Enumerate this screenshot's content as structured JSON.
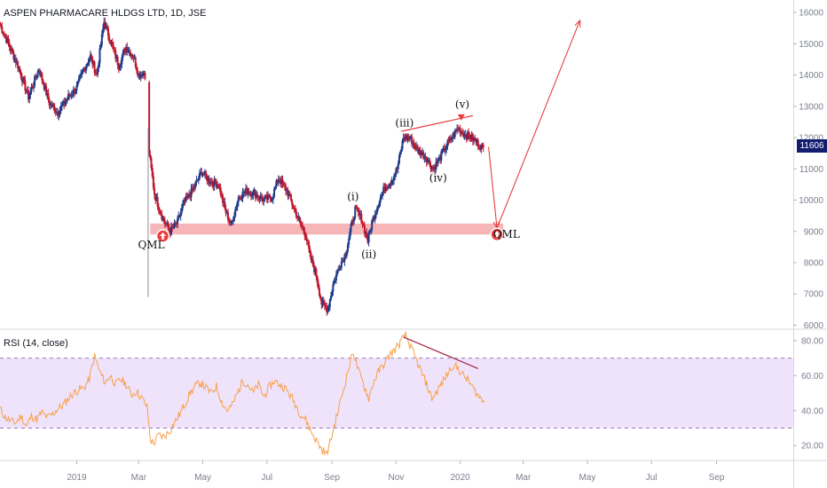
{
  "header": {
    "title": "ASPEN PHARMACARE HLDGS LTD, 1D, JSE",
    "rsi_title": "RSI (14, close)",
    "last_price": "11606"
  },
  "colors": {
    "up_candle": "#1e3a8a",
    "down_candle": "#c0172d",
    "rsi_line": "#f7a04a",
    "rsi_band": "#efe3fb",
    "rsi_band_border": "#9c7ab3",
    "qml_zone": "#f4a9ab",
    "projection": "#e83e3e",
    "divergence": "#a4243f",
    "badge": "#131d70",
    "axis_text": "#7a7f8c",
    "divider": "#d7d9de"
  },
  "chart_data": [
    {
      "type": "candlestick",
      "title": "ASPEN PHARMACARE HLDGS LTD, 1D, JSE",
      "ylim": [
        5900,
        16400
      ],
      "y_ticks": [
        6000,
        7000,
        8000,
        9000,
        10000,
        11000,
        12000,
        13000,
        14000,
        15000,
        16000
      ],
      "y_tick_labels": [
        "6000",
        "7000",
        "8000",
        "9000",
        "10000",
        "11000",
        "12000",
        "13000",
        "14000",
        "15000",
        "16000"
      ],
      "last_price": 11606,
      "close_path": [
        [
          "2018-10-20",
          15600
        ],
        [
          "2018-10-28",
          15000
        ],
        [
          "2018-11-06",
          14300
        ],
        [
          "2018-11-16",
          13300
        ],
        [
          "2018-11-26",
          14200
        ],
        [
          "2018-12-06",
          13100
        ],
        [
          "2018-12-14",
          12800
        ],
        [
          "2018-12-24",
          13300
        ],
        [
          "2019-01-01",
          13600
        ],
        [
          "2019-01-08",
          14200
        ],
        [
          "2019-01-14",
          14600
        ],
        [
          "2019-01-20",
          14000
        ],
        [
          "2019-01-27",
          15700
        ],
        [
          "2019-02-03",
          15000
        ],
        [
          "2019-02-10",
          14300
        ],
        [
          "2019-02-17",
          14900
        ],
        [
          "2019-02-24",
          14600
        ],
        [
          "2019-03-01",
          14000
        ],
        [
          "2019-03-06",
          14100
        ],
        [
          "2019-03-10",
          13700
        ],
        [
          "2019-03-11",
          11500
        ],
        [
          "2019-03-16",
          10200
        ],
        [
          "2019-03-24",
          9400
        ],
        [
          "2019-03-31",
          9000
        ],
        [
          "2019-04-07",
          9300
        ],
        [
          "2019-04-13",
          9900
        ],
        [
          "2019-04-21",
          10300
        ],
        [
          "2019-04-30",
          10900
        ],
        [
          "2019-05-08",
          10600
        ],
        [
          "2019-05-16",
          10500
        ],
        [
          "2019-05-22",
          9700
        ],
        [
          "2019-05-28",
          9200
        ],
        [
          "2019-06-04",
          10100
        ],
        [
          "2019-06-12",
          10300
        ],
        [
          "2019-06-20",
          10200
        ],
        [
          "2019-06-28",
          10000
        ],
        [
          "2019-07-06",
          10100
        ],
        [
          "2019-07-12",
          10700
        ],
        [
          "2019-07-20",
          10300
        ],
        [
          "2019-07-26",
          9800
        ],
        [
          "2019-08-01",
          9300
        ],
        [
          "2019-08-07",
          8900
        ],
        [
          "2019-08-11",
          8200
        ],
        [
          "2019-08-17",
          7600
        ],
        [
          "2019-08-22",
          6700
        ],
        [
          "2019-08-28",
          6500
        ],
        [
          "2019-09-02",
          7300
        ],
        [
          "2019-09-08",
          7900
        ],
        [
          "2019-09-14",
          8300
        ],
        [
          "2019-09-19",
          9100
        ],
        [
          "2019-09-23",
          9700
        ],
        [
          "2019-09-29",
          9400
        ],
        [
          "2019-10-05",
          8700
        ],
        [
          "2019-10-09",
          9300
        ],
        [
          "2019-10-15",
          9900
        ],
        [
          "2019-10-21",
          10400
        ],
        [
          "2019-10-27",
          10600
        ],
        [
          "2019-11-02",
          11000
        ],
        [
          "2019-11-08",
          12000
        ],
        [
          "2019-11-14",
          12000
        ],
        [
          "2019-11-21",
          11600
        ],
        [
          "2019-11-29",
          11400
        ],
        [
          "2019-12-06",
          11000
        ],
        [
          "2019-12-12",
          11300
        ],
        [
          "2019-12-18",
          11700
        ],
        [
          "2019-12-24",
          12000
        ],
        [
          "2019-12-30",
          12300
        ],
        [
          "2020-01-05",
          12100
        ],
        [
          "2020-01-12",
          12000
        ],
        [
          "2020-01-18",
          11800
        ],
        [
          "2020-01-24",
          11606
        ]
      ],
      "qml_zone": [
        8900,
        9250
      ],
      "wave_labels": [
        {
          "text": "(iii)",
          "date": "2019-11-09",
          "price": 12350
        },
        {
          "text": "(v)",
          "date": "2020-01-03",
          "price": 12950
        },
        {
          "text": "(iv)",
          "date": "2019-12-11",
          "price": 10600
        },
        {
          "text": "(ii)",
          "date": "2019-10-06",
          "price": 8150
        },
        {
          "text": "(i)",
          "date": "2019-09-21",
          "price": 10000
        },
        {
          "text": "QML",
          "date": "2019-03-13",
          "price": 8450
        },
        {
          "text": "QML",
          "date": "2020-02-14",
          "price": 8800
        }
      ],
      "qml_markers": [
        [
          "2019-03-24",
          8850
        ],
        [
          "2020-02-05",
          8900
        ]
      ],
      "projection": [
        [
          "2020-01-28",
          11700
        ],
        [
          "2020-02-05",
          9100
        ],
        [
          "2020-04-24",
          15750
        ]
      ],
      "wave_v_marker": [
        "2020-01-02",
        12600
      ],
      "divergence_top": [
        [
          "2019-11-06",
          12200
        ],
        [
          "2020-01-13",
          12700
        ]
      ]
    },
    {
      "type": "line",
      "title": "RSI (14, close)",
      "ylim": [
        12,
        86
      ],
      "y_ticks": [
        20,
        40,
        60,
        80
      ],
      "y_tick_labels": [
        "20.00",
        "40.00",
        "60.00",
        "80.00"
      ],
      "bands": [
        30,
        70
      ],
      "divergence": [
        [
          "2019-11-08",
          82
        ],
        [
          "2020-01-18",
          64
        ]
      ],
      "series": [
        {
          "values": [
            [
              "2018-10-20",
              41
            ],
            [
              "2018-10-25",
              36
            ],
            [
              "2018-10-30",
              34
            ],
            [
              "2018-11-04",
              33
            ],
            [
              "2018-11-09",
              37
            ],
            [
              "2018-11-14",
              31
            ],
            [
              "2018-11-19",
              37
            ],
            [
              "2018-11-24",
              35
            ],
            [
              "2018-11-29",
              39
            ],
            [
              "2018-12-04",
              36
            ],
            [
              "2018-12-09",
              38
            ],
            [
              "2018-12-14",
              41
            ],
            [
              "2018-12-19",
              43
            ],
            [
              "2018-12-24",
              47
            ],
            [
              "2018-12-29",
              50
            ],
            [
              "2019-01-03",
              52
            ],
            [
              "2019-01-08",
              53
            ],
            [
              "2019-01-13",
              58
            ],
            [
              "2019-01-18",
              71
            ],
            [
              "2019-01-23",
              62
            ],
            [
              "2019-01-28",
              56
            ],
            [
              "2019-02-02",
              60
            ],
            [
              "2019-02-07",
              55
            ],
            [
              "2019-02-12",
              58
            ],
            [
              "2019-02-17",
              55
            ],
            [
              "2019-02-22",
              49
            ],
            [
              "2019-02-27",
              51
            ],
            [
              "2019-03-04",
              47
            ],
            [
              "2019-03-09",
              42
            ],
            [
              "2019-03-12",
              24
            ],
            [
              "2019-03-15",
              21
            ],
            [
              "2019-03-20",
              26
            ],
            [
              "2019-03-25",
              25
            ],
            [
              "2019-03-30",
              28
            ],
            [
              "2019-04-04",
              33
            ],
            [
              "2019-04-09",
              38
            ],
            [
              "2019-04-14",
              44
            ],
            [
              "2019-04-19",
              50
            ],
            [
              "2019-04-24",
              54
            ],
            [
              "2019-04-29",
              56
            ],
            [
              "2019-05-04",
              53
            ],
            [
              "2019-05-09",
              50
            ],
            [
              "2019-05-14",
              54
            ],
            [
              "2019-05-19",
              45
            ],
            [
              "2019-05-24",
              40
            ],
            [
              "2019-05-29",
              43
            ],
            [
              "2019-06-03",
              50
            ],
            [
              "2019-06-08",
              57
            ],
            [
              "2019-06-13",
              55
            ],
            [
              "2019-06-18",
              50
            ],
            [
              "2019-06-23",
              55
            ],
            [
              "2019-06-28",
              48
            ],
            [
              "2019-07-03",
              53
            ],
            [
              "2019-07-08",
              57
            ],
            [
              "2019-07-13",
              55
            ],
            [
              "2019-07-18",
              53
            ],
            [
              "2019-07-23",
              49
            ],
            [
              "2019-07-28",
              44
            ],
            [
              "2019-08-02",
              38
            ],
            [
              "2019-08-07",
              35
            ],
            [
              "2019-08-12",
              28
            ],
            [
              "2019-08-17",
              23
            ],
            [
              "2019-08-22",
              18
            ],
            [
              "2019-08-27",
              15
            ],
            [
              "2019-09-01",
              26
            ],
            [
              "2019-09-06",
              38
            ],
            [
              "2019-09-11",
              50
            ],
            [
              "2019-09-16",
              62
            ],
            [
              "2019-09-21",
              74
            ],
            [
              "2019-09-26",
              63
            ],
            [
              "2019-10-01",
              55
            ],
            [
              "2019-10-06",
              47
            ],
            [
              "2019-10-11",
              57
            ],
            [
              "2019-10-16",
              63
            ],
            [
              "2019-10-21",
              67
            ],
            [
              "2019-10-26",
              72
            ],
            [
              "2019-10-31",
              75
            ],
            [
              "2019-11-05",
              79
            ],
            [
              "2019-11-10",
              83
            ],
            [
              "2019-11-15",
              76
            ],
            [
              "2019-11-20",
              69
            ],
            [
              "2019-11-25",
              62
            ],
            [
              "2019-11-30",
              55
            ],
            [
              "2019-12-05",
              47
            ],
            [
              "2019-12-10",
              51
            ],
            [
              "2019-12-15",
              56
            ],
            [
              "2019-12-20",
              61
            ],
            [
              "2019-12-25",
              66
            ],
            [
              "2019-12-30",
              64
            ],
            [
              "2020-01-04",
              60
            ],
            [
              "2020-01-09",
              57
            ],
            [
              "2020-01-14",
              52
            ],
            [
              "2020-01-19",
              48
            ],
            [
              "2020-01-24",
              45
            ]
          ]
        }
      ]
    },
    {
      "type": "time_axis",
      "xlim": [
        "2018-10-20",
        "2020-11-13"
      ],
      "ticks": [
        {
          "label": "2019",
          "date": "2019-01-01"
        },
        {
          "label": "Mar",
          "date": "2019-03-01"
        },
        {
          "label": "May",
          "date": "2019-05-01"
        },
        {
          "label": "Jul",
          "date": "2019-07-01"
        },
        {
          "label": "Sep",
          "date": "2019-09-01"
        },
        {
          "label": "Nov",
          "date": "2019-11-01"
        },
        {
          "label": "2020",
          "date": "2020-01-01"
        },
        {
          "label": "Mar",
          "date": "2020-03-01"
        },
        {
          "label": "May",
          "date": "2020-05-01"
        },
        {
          "label": "Jul",
          "date": "2020-07-01"
        },
        {
          "label": "Sep",
          "date": "2020-09-01"
        }
      ]
    }
  ]
}
